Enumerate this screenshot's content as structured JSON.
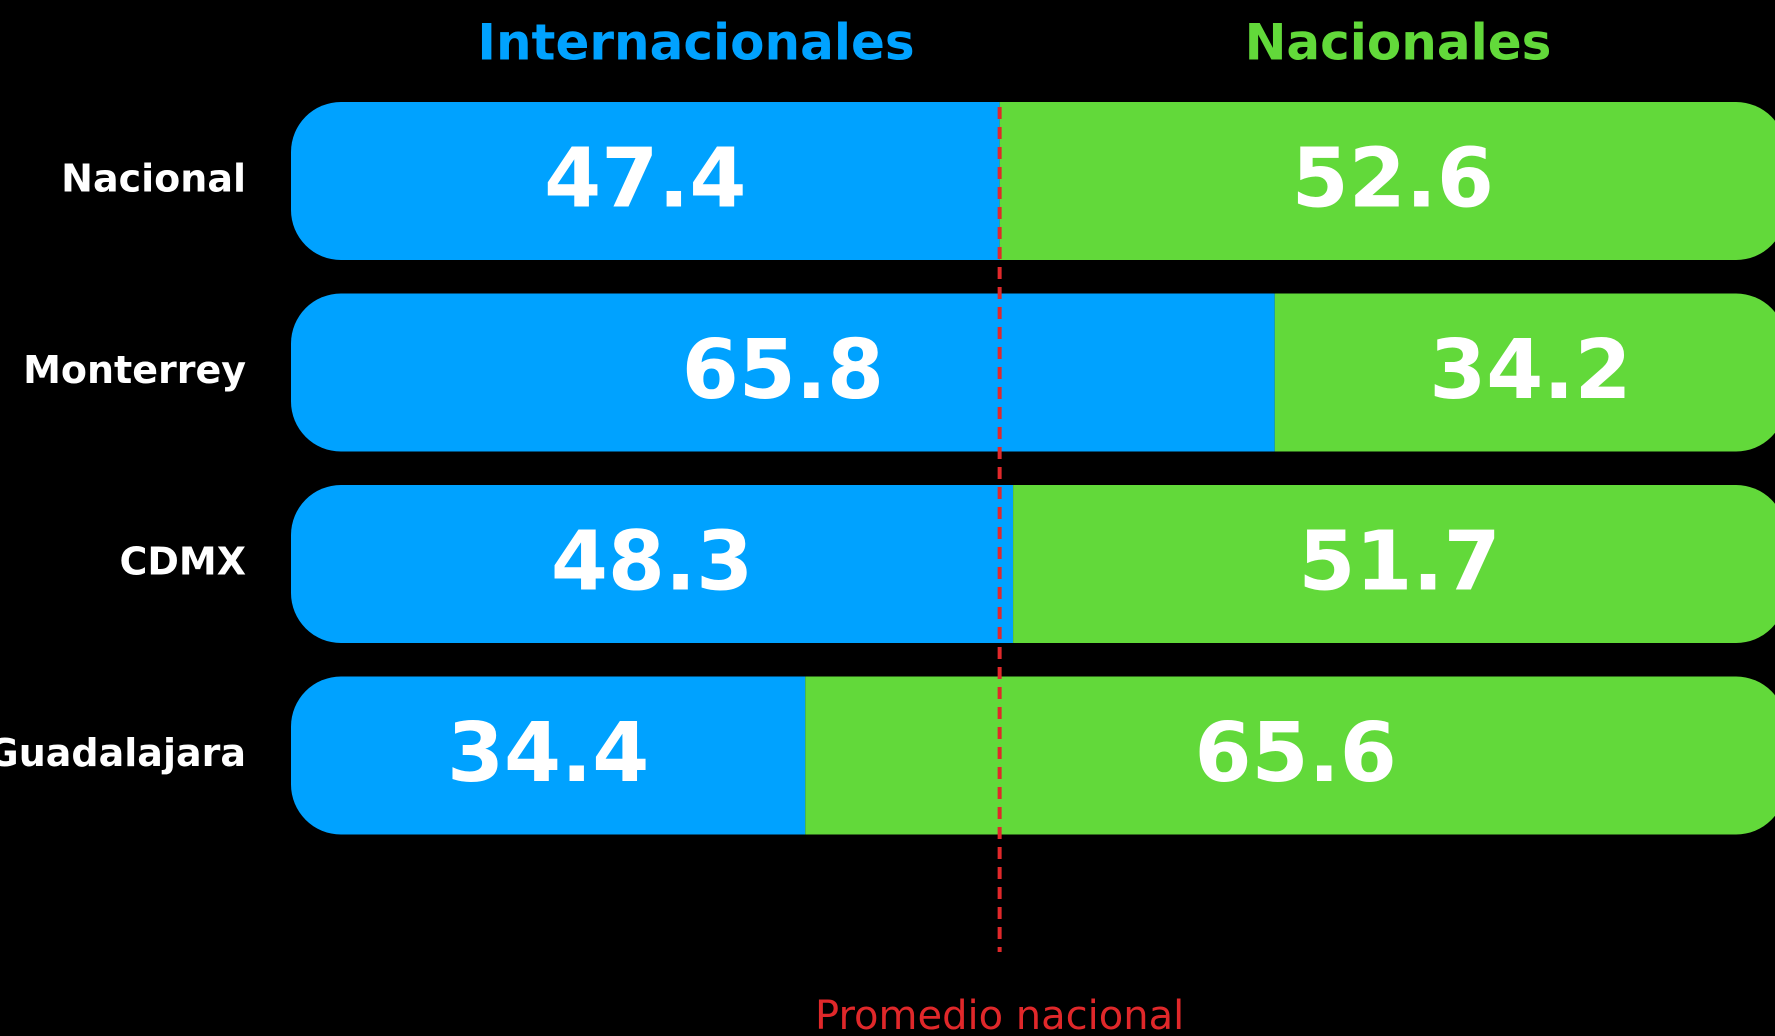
{
  "chart_data": {
    "type": "stacked_bar_horizontal",
    "categories": [
      "Nacional",
      "Monterrey",
      "CDMX",
      "Guadalajara"
    ],
    "series": [
      {
        "name": "Internacionales",
        "color": "#00a2ff",
        "values": [
          47.4,
          65.8,
          48.3,
          34.4
        ]
      },
      {
        "name": "Nacionales",
        "color": "#62d93a",
        "values": [
          52.6,
          34.2,
          51.7,
          65.6
        ]
      }
    ],
    "xlim": [
      0,
      100
    ],
    "reference_line": {
      "value": 47.4,
      "label": "Promedio nacional",
      "color": "#e0282a"
    }
  }
}
